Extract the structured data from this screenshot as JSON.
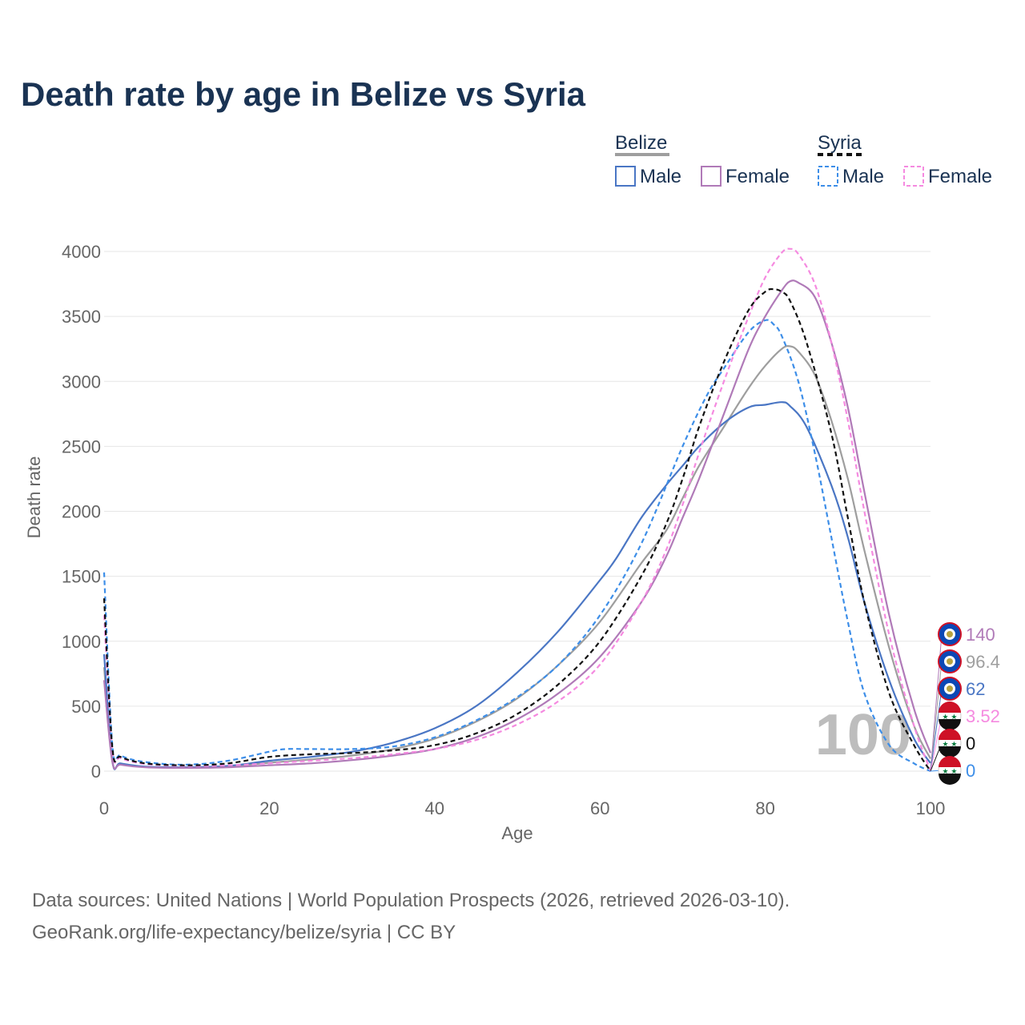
{
  "title": "Death rate by age in Belize vs Syria",
  "frame_label": "100",
  "source_line1": "Data sources: United Nations | World Population Prospects (2026, retrieved 2026-03-10).",
  "source_line2": "GeoRank.org/life-expectancy/belize/syria | CC BY",
  "legend": {
    "group_belize": "Belize",
    "group_syria": "Syria",
    "male": "Male",
    "female": "Female"
  },
  "colors": {
    "belize_male": "#4a76c4",
    "belize_female": "#b07ab8",
    "belize_total": "#9e9e9e",
    "syria_male": "#3d8ee8",
    "syria_female": "#f58ae0",
    "syria_total": "#111111"
  },
  "chart_data": {
    "type": "line",
    "title": "Death rate by age in Belize vs Syria",
    "xlabel": "Age",
    "ylabel": "Death rate",
    "xlim": [
      0,
      100
    ],
    "ylim": [
      0,
      4000
    ],
    "xticks": [
      "0",
      "20",
      "40",
      "60",
      "80",
      "100"
    ],
    "yticks": [
      "0",
      "500",
      "1000",
      "1500",
      "2000",
      "2500",
      "3000",
      "3500",
      "4000"
    ],
    "grid": true,
    "series": [
      {
        "name": "Belize Male",
        "key": "belize_male",
        "dashed": false,
        "x": [
          0,
          1,
          2,
          5,
          10,
          15,
          20,
          25,
          30,
          35,
          40,
          45,
          50,
          55,
          60,
          62,
          65,
          68,
          70,
          72,
          75,
          78,
          80,
          82,
          83,
          85,
          88,
          90,
          92,
          95,
          98,
          100
        ],
        "y": [
          900,
          80,
          60,
          35,
          30,
          40,
          80,
          110,
          150,
          220,
          330,
          500,
          760,
          1080,
          1470,
          1640,
          1950,
          2200,
          2350,
          2500,
          2680,
          2800,
          2820,
          2840,
          2810,
          2650,
          2200,
          1800,
          1300,
          700,
          250,
          62
        ]
      },
      {
        "name": "Belize Female",
        "key": "belize_female",
        "dashed": false,
        "x": [
          0,
          1,
          2,
          5,
          10,
          15,
          20,
          25,
          30,
          35,
          40,
          45,
          50,
          55,
          60,
          65,
          68,
          70,
          72,
          75,
          78,
          80,
          82,
          83,
          84,
          86,
          88,
          90,
          92,
          95,
          98,
          100
        ],
        "y": [
          700,
          70,
          50,
          30,
          25,
          30,
          45,
          60,
          85,
          120,
          170,
          260,
          400,
          600,
          880,
          1300,
          1650,
          1950,
          2250,
          2750,
          3250,
          3500,
          3700,
          3770,
          3760,
          3650,
          3300,
          2800,
          2150,
          1200,
          480,
          140
        ]
      },
      {
        "name": "Belize Total",
        "key": "belize_total",
        "dashed": false,
        "x": [
          0,
          1,
          2,
          5,
          10,
          15,
          20,
          25,
          30,
          35,
          40,
          45,
          50,
          55,
          60,
          65,
          68,
          70,
          72,
          75,
          78,
          80,
          82,
          83,
          84,
          86,
          88,
          90,
          92,
          95,
          98,
          100
        ],
        "y": [
          800,
          75,
          55,
          32,
          28,
          35,
          65,
          90,
          120,
          170,
          250,
          380,
          560,
          820,
          1150,
          1600,
          1850,
          2100,
          2350,
          2650,
          2950,
          3120,
          3250,
          3270,
          3230,
          3050,
          2700,
          2250,
          1700,
          950,
          350,
          96.4
        ]
      },
      {
        "name": "Syria Male",
        "key": "syria_male",
        "dashed": true,
        "x": [
          0,
          1,
          2,
          5,
          10,
          15,
          20,
          22,
          25,
          30,
          35,
          40,
          45,
          50,
          55,
          60,
          65,
          70,
          73,
          75,
          78,
          80,
          81,
          82,
          84,
          86,
          88,
          90,
          92,
          95,
          98,
          100
        ],
        "y": [
          1530,
          200,
          120,
          70,
          50,
          80,
          150,
          170,
          170,
          170,
          190,
          260,
          390,
          570,
          820,
          1200,
          1750,
          2500,
          2900,
          3100,
          3380,
          3470,
          3440,
          3350,
          3000,
          2450,
          1800,
          1150,
          600,
          200,
          60,
          0
        ]
      },
      {
        "name": "Syria Female",
        "key": "syria_female",
        "dashed": true,
        "x": [
          0,
          1,
          2,
          5,
          10,
          15,
          20,
          25,
          30,
          35,
          40,
          45,
          50,
          55,
          60,
          65,
          68,
          70,
          72,
          75,
          78,
          80,
          82,
          83,
          84,
          86,
          88,
          90,
          92,
          95,
          98,
          100
        ],
        "y": [
          1200,
          160,
          100,
          55,
          40,
          45,
          60,
          80,
          100,
          130,
          170,
          240,
          360,
          540,
          820,
          1300,
          1700,
          2050,
          2450,
          3000,
          3500,
          3800,
          3990,
          4020,
          3980,
          3750,
          3300,
          2700,
          2000,
          1050,
          350,
          3.52
        ]
      },
      {
        "name": "Syria Total",
        "key": "syria_total",
        "dashed": true,
        "x": [
          0,
          1,
          2,
          5,
          10,
          15,
          20,
          25,
          30,
          35,
          40,
          45,
          50,
          55,
          60,
          65,
          68,
          70,
          72,
          75,
          78,
          80,
          81,
          82,
          83,
          85,
          88,
          90,
          92,
          95,
          98,
          100
        ],
        "y": [
          1330,
          180,
          110,
          60,
          45,
          60,
          110,
          130,
          140,
          160,
          200,
          290,
          440,
          670,
          1000,
          1500,
          1900,
          2250,
          2650,
          3150,
          3550,
          3690,
          3710,
          3690,
          3620,
          3300,
          2600,
          1950,
          1300,
          600,
          200,
          0
        ]
      }
    ],
    "end_labels": [
      {
        "key": "belize_female",
        "text": "140",
        "country": "belize"
      },
      {
        "key": "belize_total",
        "text": "96.4",
        "country": "belize"
      },
      {
        "key": "belize_male",
        "text": "62",
        "country": "belize"
      },
      {
        "key": "syria_female",
        "text": "3.52",
        "country": "syria"
      },
      {
        "key": "syria_total",
        "text": "0",
        "country": "syria"
      },
      {
        "key": "syria_male",
        "text": "0",
        "country": "syria"
      }
    ]
  }
}
